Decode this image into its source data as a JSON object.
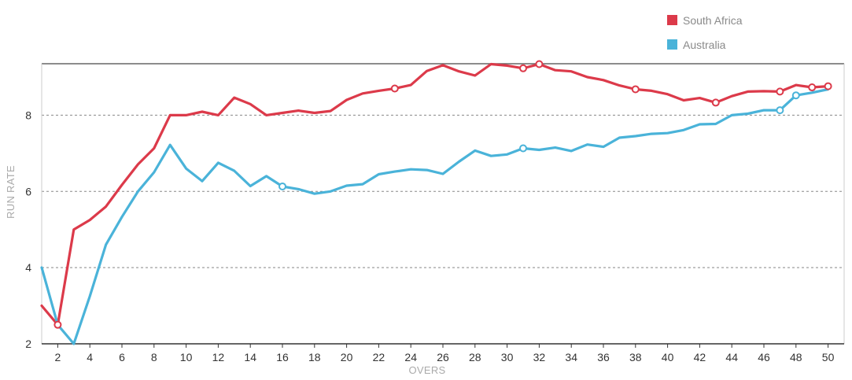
{
  "chart_data": {
    "type": "line",
    "xlabel": "OVERS",
    "ylabel": "RUN RATE",
    "xlim": [
      1,
      51
    ],
    "ylim": [
      2,
      9.35
    ],
    "x_ticks": [
      2,
      4,
      6,
      8,
      10,
      12,
      14,
      16,
      18,
      20,
      22,
      24,
      26,
      28,
      30,
      32,
      34,
      36,
      38,
      40,
      42,
      44,
      46,
      48,
      50
    ],
    "y_ticks": [
      2,
      4,
      6,
      8
    ],
    "grid": "horizontal-dotted",
    "legend": "top-right",
    "series": [
      {
        "name": "South Africa",
        "color": "#dc3a4a",
        "x": [
          1,
          2,
          3,
          4,
          5,
          6,
          7,
          8,
          9,
          10,
          11,
          12,
          13,
          14,
          15,
          16,
          17,
          18,
          19,
          20,
          21,
          22,
          23,
          24,
          25,
          26,
          27,
          28,
          29,
          30,
          31,
          32,
          33,
          34,
          35,
          36,
          37,
          38,
          39,
          40,
          41,
          42,
          43,
          44,
          45,
          46,
          47,
          48,
          49,
          50
        ],
        "values": [
          3.0,
          2.5,
          5.0,
          5.25,
          5.6,
          6.17,
          6.71,
          7.13,
          8.0,
          8.0,
          8.09,
          8.0,
          8.46,
          8.29,
          8.0,
          8.06,
          8.12,
          8.06,
          8.11,
          8.4,
          8.57,
          8.64,
          8.7,
          8.79,
          9.16,
          9.31,
          9.15,
          9.04,
          9.34,
          9.3,
          9.23,
          9.34,
          9.18,
          9.15,
          9.0,
          8.92,
          8.78,
          8.68,
          8.64,
          8.55,
          8.39,
          8.45,
          8.33,
          8.5,
          8.62,
          8.63,
          8.62,
          8.79,
          8.73,
          8.76
        ],
        "wickets_at": [
          2,
          23,
          31,
          32,
          38,
          43,
          47,
          49,
          50
        ]
      },
      {
        "name": "Australia",
        "color": "#4ab3d9",
        "x": [
          1,
          2,
          3,
          4,
          5,
          6,
          7,
          8,
          9,
          10,
          11,
          12,
          13,
          14,
          15,
          16,
          17,
          18,
          19,
          20,
          21,
          22,
          23,
          24,
          25,
          26,
          27,
          28,
          29,
          30,
          31,
          32,
          33,
          34,
          35,
          36,
          37,
          38,
          39,
          40,
          41,
          42,
          43,
          44,
          45,
          46,
          47,
          48,
          49,
          50
        ],
        "values": [
          4.0,
          2.5,
          2.0,
          3.25,
          4.6,
          5.33,
          6.0,
          6.5,
          7.22,
          6.6,
          6.27,
          6.75,
          6.54,
          6.14,
          6.4,
          6.13,
          6.06,
          5.94,
          6.0,
          6.15,
          6.19,
          6.45,
          6.52,
          6.58,
          6.56,
          6.46,
          6.78,
          7.07,
          6.93,
          6.97,
          7.13,
          7.09,
          7.15,
          7.06,
          7.23,
          7.17,
          7.41,
          7.45,
          7.51,
          7.53,
          7.61,
          7.76,
          7.77,
          8.0,
          8.04,
          8.13,
          8.13,
          8.52,
          8.59,
          8.68
        ],
        "wickets_at": [
          16,
          31,
          47,
          48
        ]
      }
    ]
  }
}
